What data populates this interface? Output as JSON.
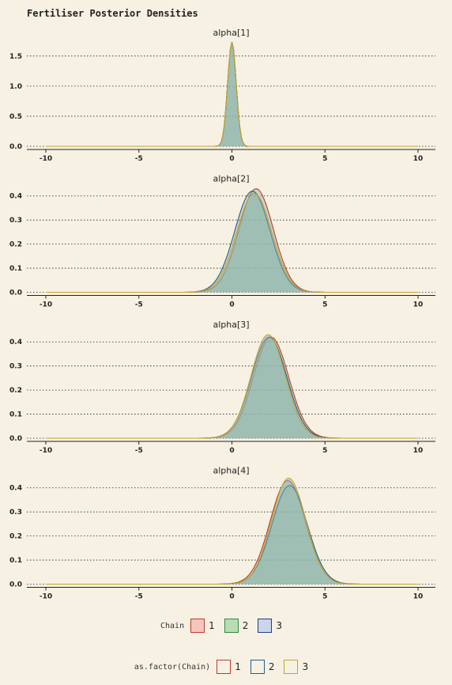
{
  "title": "Fertiliser Posterior Densities",
  "chart_data": {
    "type": "area",
    "xlim": [
      -10,
      10
    ],
    "x_ticks": [
      -10,
      -5,
      0,
      5,
      10
    ],
    "grid": "horizontal dotted",
    "panels": [
      {
        "title": "alpha[1]",
        "ylim": [
          0,
          1.8
        ],
        "y_ticks": [
          "0.0",
          "0.5",
          "1.0",
          "1.5"
        ],
        "series": [
          {
            "name": "1",
            "mean": 0.0,
            "sd": 0.23,
            "peak": 1.72
          },
          {
            "name": "2",
            "mean": 0.0,
            "sd": 0.23,
            "peak": 1.73
          },
          {
            "name": "3",
            "mean": 0.0,
            "sd": 0.23,
            "peak": 1.72
          }
        ]
      },
      {
        "title": "alpha[2]",
        "ylim": [
          0,
          0.45
        ],
        "y_ticks": [
          "0.0",
          "0.1",
          "0.2",
          "0.3",
          "0.4"
        ],
        "series": [
          {
            "name": "1",
            "mean": 1.3,
            "sd": 0.93,
            "peak": 0.43
          },
          {
            "name": "2",
            "mean": 1.1,
            "sd": 0.95,
            "peak": 0.42
          },
          {
            "name": "3",
            "mean": 1.2,
            "sd": 0.95,
            "peak": 0.41
          }
        ]
      },
      {
        "title": "alpha[3]",
        "ylim": [
          0,
          0.45
        ],
        "y_ticks": [
          "0.0",
          "0.1",
          "0.2",
          "0.3",
          "0.4"
        ],
        "series": [
          {
            "name": "1",
            "mean": 2.1,
            "sd": 0.95,
            "peak": 0.42
          },
          {
            "name": "2",
            "mean": 2.0,
            "sd": 0.95,
            "peak": 0.42
          },
          {
            "name": "3",
            "mean": 1.95,
            "sd": 0.92,
            "peak": 0.43
          }
        ]
      },
      {
        "title": "alpha[4]",
        "ylim": [
          0,
          0.45
        ],
        "y_ticks": [
          "0.0",
          "0.1",
          "0.2",
          "0.3",
          "0.4"
        ],
        "series": [
          {
            "name": "1",
            "mean": 3.0,
            "sd": 0.95,
            "peak": 0.43
          },
          {
            "name": "2",
            "mean": 3.1,
            "sd": 0.95,
            "peak": 0.41
          },
          {
            "name": "3",
            "mean": 3.05,
            "sd": 0.92,
            "peak": 0.44
          }
        ]
      }
    ]
  },
  "colors": {
    "fill": "#8fb3ab",
    "line": [
      "#c0392b",
      "#1f5f8b",
      "#c8a227"
    ],
    "fill_keys": [
      "#f4c6bd",
      "#b9dcb5",
      "#c8d6e8"
    ],
    "fill_key_borders": [
      "#c0392b",
      "#2e8b3e",
      "#1f3f8b"
    ]
  },
  "legend_fill": {
    "title": "Chain",
    "labels": [
      "1",
      "2",
      "3"
    ]
  },
  "legend_colour": {
    "title": "as.factor(Chain)",
    "labels": [
      "1",
      "2",
      "3"
    ]
  }
}
